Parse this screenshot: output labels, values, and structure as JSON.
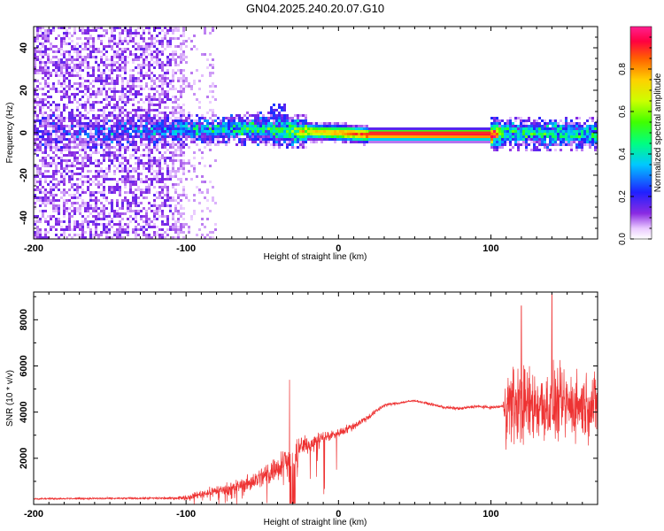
{
  "chart_data": [
    {
      "type": "heatmap",
      "title": "GN04.2025.240.20.07.G10",
      "xlabel": "Height of straight line (km)",
      "ylabel": "Frequency (Hz)",
      "xlim": [
        -200,
        170
      ],
      "ylim": [
        -50,
        50
      ],
      "xticks": [
        -200,
        -100,
        0,
        100
      ],
      "yticks": [
        -40,
        -20,
        0,
        20,
        40
      ],
      "colorbar": {
        "label": "Normalized spectral amplitude",
        "range": [
          0,
          1
        ],
        "ticks": [
          "0.0",
          "0.2",
          "0.4",
          "0.6",
          "0.8"
        ]
      },
      "ridge": [
        {
          "x": -200,
          "freq": 0,
          "amp": 0.05
        },
        {
          "x": -100,
          "freq": 1,
          "amp": 0.3
        },
        {
          "x": -80,
          "freq": 2,
          "amp": 0.35
        },
        {
          "x": -60,
          "freq": 2,
          "amp": 0.4
        },
        {
          "x": -40,
          "freq": 1,
          "amp": 0.45
        },
        {
          "x": -20,
          "freq": 0.5,
          "amp": 0.7
        },
        {
          "x": 0,
          "freq": 0,
          "amp": 0.8
        },
        {
          "x": 20,
          "freq": -1,
          "amp": 0.9
        },
        {
          "x": 100,
          "freq": -1,
          "amp": 0.95
        },
        {
          "x": 110,
          "freq": 0,
          "amp": 0.4
        },
        {
          "x": 170,
          "freq": -1,
          "amp": 0.4
        }
      ]
    },
    {
      "type": "line",
      "xlabel": "Height of straight line (km)",
      "ylabel": "SNR (10 * v/v)",
      "xlim": [
        -200,
        170
      ],
      "ylim": [
        0,
        9200
      ],
      "xticks": [
        -200,
        -100,
        0,
        100
      ],
      "yticks": [
        2000,
        4000,
        6000,
        8000
      ],
      "color": "#ee3333",
      "series": [
        {
          "name": "SNR",
          "x": [
            -200,
            -150,
            -110,
            -100,
            -90,
            -80,
            -70,
            -60,
            -50,
            -40,
            -35,
            -30,
            -25,
            -20,
            -10,
            0,
            10,
            20,
            30,
            40,
            50,
            60,
            70,
            80,
            90,
            100,
            108,
            110,
            120,
            130,
            140,
            150,
            160,
            170
          ],
          "y": [
            250,
            260,
            270,
            300,
            450,
            600,
            700,
            900,
            1200,
            1600,
            2000,
            1800,
            2500,
            2600,
            2900,
            3100,
            3400,
            3800,
            4300,
            4400,
            4500,
            4350,
            4200,
            4150,
            4250,
            4200,
            4250,
            4300,
            4300,
            4300,
            4300,
            4300,
            4300,
            4300
          ],
          "noise": [
            50,
            60,
            80,
            150,
            250,
            350,
            400,
            500,
            700,
            900,
            1000,
            900,
            700,
            500,
            400,
            300,
            250,
            200,
            120,
            80,
            60,
            80,
            100,
            100,
            100,
            100,
            120,
            2500,
            2500,
            2400,
            2300,
            2200,
            2100,
            2000
          ]
        }
      ],
      "peaks": [
        {
          "x": -32,
          "y": 5400
        },
        {
          "x": 120,
          "y": 8600
        },
        {
          "x": 140,
          "y": 9100
        }
      ]
    }
  ]
}
